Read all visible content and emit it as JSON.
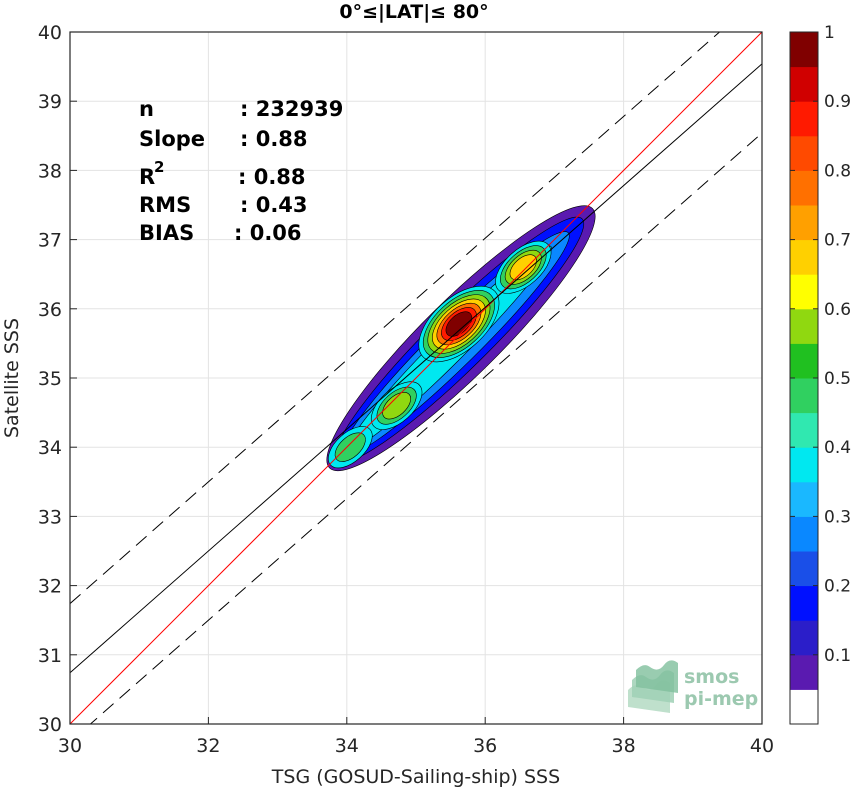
{
  "chart_data": {
    "type": "heatmap",
    "subtype": "density-contour-scatter",
    "title": "0°≤|LAT|≤ 80°",
    "xlabel": "TSG (GOSUD-Sailing-ship) SSS",
    "ylabel": "Satellite SSS",
    "xlim": [
      30,
      40
    ],
    "ylim": [
      30,
      40
    ],
    "xticks": [
      "30",
      "32",
      "34",
      "36",
      "38",
      "40"
    ],
    "yticks": [
      "30",
      "31",
      "32",
      "33",
      "34",
      "35",
      "36",
      "37",
      "38",
      "39",
      "40"
    ],
    "grid": true,
    "stats": [
      {
        "label": "n",
        "sep": ": ",
        "value": "232939"
      },
      {
        "label": "Slope",
        "sep": ": ",
        "value": "0.88"
      },
      {
        "label": "R",
        "sup": "2",
        "sep": ": ",
        "value": "0.88"
      },
      {
        "label": "RMS",
        "sep": ": ",
        "value": "0.43"
      },
      {
        "label": "BIAS",
        "sep": ": ",
        "value": "0.06"
      }
    ],
    "lines": {
      "identity": {
        "color": "#ff0000",
        "x": [
          30,
          40
        ],
        "y": [
          30,
          40
        ]
      },
      "regression": {
        "color": "#000000",
        "x": [
          30,
          40
        ],
        "y": [
          30.74,
          39.54
        ]
      },
      "regression_plus": {
        "color": "#000000",
        "dash": true,
        "x": [
          30,
          40
        ],
        "y": [
          31.74,
          40.54
        ]
      },
      "regression_minus": {
        "color": "#000000",
        "dash": true,
        "x": [
          30,
          40
        ],
        "y": [
          29.74,
          38.54
        ]
      }
    },
    "density_levels": [
      0.05,
      0.15,
      0.25,
      0.35,
      0.45,
      0.55,
      0.65,
      0.75,
      0.85,
      0.95
    ],
    "density_clusters": [
      {
        "x": 34.05,
        "y": 34.0,
        "peak": 0.45
      },
      {
        "x": 34.72,
        "y": 34.6,
        "peak": 0.55
      },
      {
        "x": 35.62,
        "y": 35.78,
        "peak": 1.0
      },
      {
        "x": 36.55,
        "y": 36.6,
        "peak": 0.65
      }
    ],
    "colorbar": {
      "ticks": [
        "0.1",
        "0.2",
        "0.3",
        "0.4",
        "0.5",
        "0.6",
        "0.7",
        "0.8",
        "0.9",
        "1"
      ],
      "colors": [
        "#ffffff",
        "#5a1ab0",
        "#2b1ec9",
        "#0010ff",
        "#1a4fe8",
        "#0a88ff",
        "#1ab8ff",
        "#00e8f0",
        "#30e8b0",
        "#30d060",
        "#20c020",
        "#90d810",
        "#ffff00",
        "#ffd000",
        "#ffa000",
        "#ff7000",
        "#ff4a00",
        "#ff1a00",
        "#d00000",
        "#800000"
      ]
    }
  },
  "logo": {
    "line1": "smos",
    "line2": "pi-mep"
  }
}
